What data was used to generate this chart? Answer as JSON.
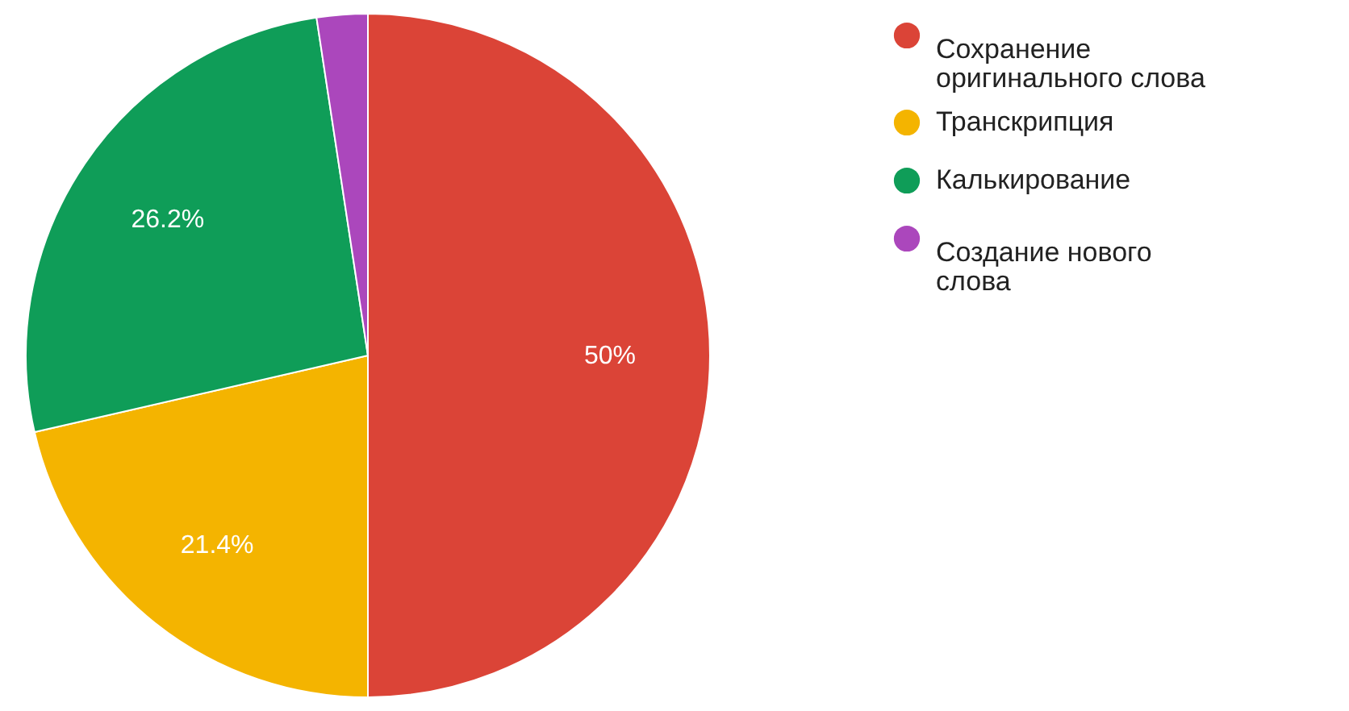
{
  "chart_data": {
    "type": "pie",
    "categories": [
      "Сохранение оригинального слова",
      "Транскрипция",
      "Калькирование",
      "Создание нового слова"
    ],
    "values": [
      50,
      21.4,
      26.2,
      2.4
    ],
    "colors": [
      "#db4437",
      "#f4b400",
      "#0f9d58",
      "#ab47bc"
    ],
    "value_labels": [
      "50%",
      "21.4%",
      "26.2%",
      null
    ],
    "legend": "top right"
  }
}
